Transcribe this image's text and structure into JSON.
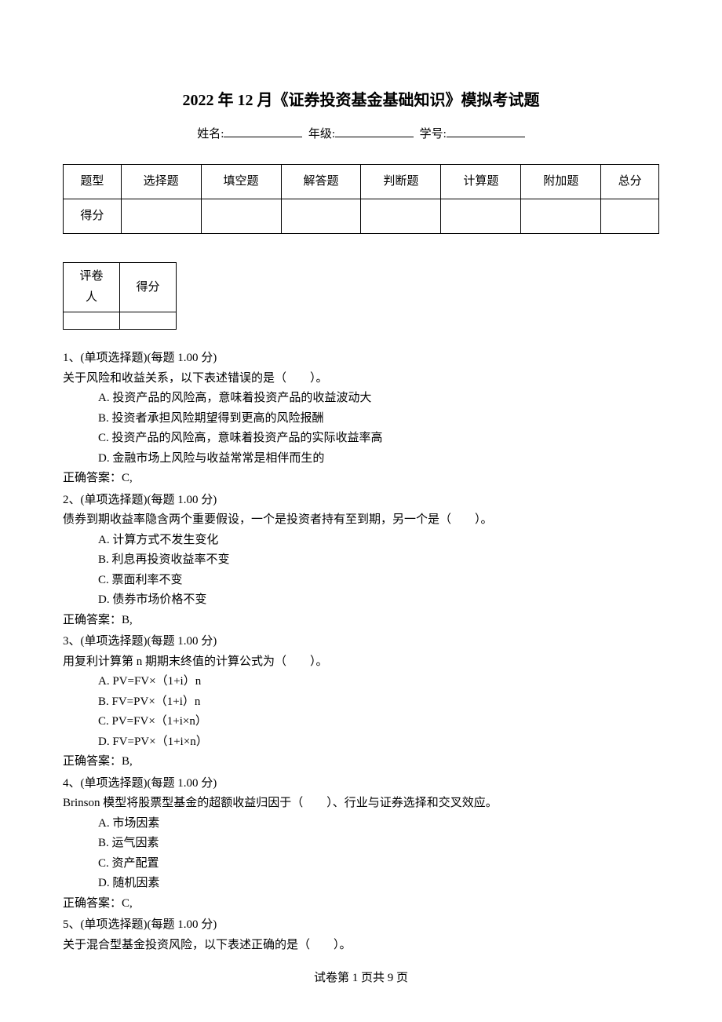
{
  "title": "2022 年 12 月《证券投资基金基础知识》模拟考试题",
  "info": {
    "name_label": "姓名:",
    "grade_label": "年级:",
    "id_label": "学号:"
  },
  "score_table": {
    "headers": [
      "题型",
      "选择题",
      "填空题",
      "解答题",
      "判断题",
      "计算题",
      "附加题",
      "总分"
    ],
    "row_label": "得分"
  },
  "mini_table": {
    "col1": "评卷人",
    "col2": "得分"
  },
  "questions": [
    {
      "number": "1、(单项选择题)(每题 1.00 分)",
      "stem": "关于风险和收益关系，以下表述错误的是（　　）。",
      "options": [
        "A. 投资产品的风险高，意味着投资产品的收益波动大",
        "B. 投资者承担风险期望得到更高的风险报酬",
        "C. 投资产品的风险高，意味着投资产品的实际收益率高",
        "D. 金融市场上风险与收益常常是相伴而生的"
      ],
      "answer": "正确答案：C,"
    },
    {
      "number": "2、(单项选择题)(每题 1.00 分)",
      "stem": "债券到期收益率隐含两个重要假设，一个是投资者持有至到期，另一个是（　　）。",
      "options": [
        "A. 计算方式不发生变化",
        "B. 利息再投资收益率不变",
        "C. 票面利率不变",
        "D. 债券市场价格不变"
      ],
      "answer": "正确答案：B,"
    },
    {
      "number": "3、(单项选择题)(每题 1.00 分)",
      "stem": "用复利计算第 n 期期末终值的计算公式为（　　）。",
      "options": [
        "A. PV=FV×（1+i）n",
        "B. FV=PV×（1+i）n",
        "C. PV=FV×（1+i×n）",
        "D. FV=PV×（1+i×n）"
      ],
      "answer": "正确答案：B,"
    },
    {
      "number": "4、(单项选择题)(每题 1.00 分)",
      "stem": "Brinson 模型将股票型基金的超额收益归因于（　　）、行业与证券选择和交叉效应。",
      "options": [
        "A. 市场因素",
        "B. 运气因素",
        "C. 资产配置",
        "D. 随机因素"
      ],
      "answer": "正确答案：C,"
    },
    {
      "number": "5、(单项选择题)(每题 1.00 分)",
      "stem": "关于混合型基金投资风险，以下表述正确的是（　　）。",
      "options": [],
      "answer": ""
    }
  ],
  "footer": "试卷第 1 页共 9 页"
}
